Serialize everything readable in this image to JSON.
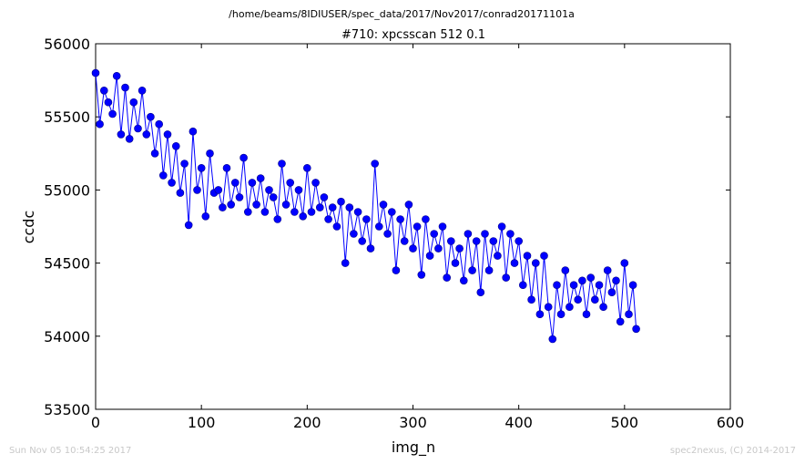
{
  "header": {
    "path": "/home/beams/8IDIUSER/spec_data/2017/Nov2017/conrad20171101a"
  },
  "footer": {
    "timestamp": "Sun Nov 05 10:54:25 2017",
    "credit": "spec2nexus, (C) 2014-2017"
  },
  "chart_data": {
    "type": "line",
    "title": "#710: xpcsscan 512 0.1",
    "xlabel": "img_n",
    "ylabel": "ccdc",
    "xlim": [
      0,
      600
    ],
    "ylim": [
      53500,
      56000
    ],
    "xticks": [
      0,
      100,
      200,
      300,
      400,
      500,
      600
    ],
    "yticks": [
      53500,
      54000,
      54500,
      55000,
      55500,
      56000
    ],
    "xtick_labels": [
      "0",
      "100",
      "200",
      "300",
      "400",
      "500",
      "600"
    ],
    "ytick_labels": [
      "53500",
      "54000",
      "54500",
      "55000",
      "55500",
      "56000"
    ],
    "grid": false,
    "marker": "circle",
    "color": "#0000ff",
    "marker_edge_color": "#00008b",
    "series": [
      {
        "x": [
          0,
          4,
          8,
          12,
          16,
          20,
          24,
          28,
          32,
          36,
          40,
          44,
          48,
          52,
          56,
          60,
          64,
          68,
          72,
          76,
          80,
          84,
          88,
          92,
          96,
          100,
          104,
          108,
          112,
          116,
          120,
          124,
          128,
          132,
          136,
          140,
          144,
          148,
          152,
          156,
          160,
          164,
          168,
          172,
          176,
          180,
          184,
          188,
          192,
          196,
          200,
          204,
          208,
          212,
          216,
          220,
          224,
          228,
          232,
          236,
          240,
          244,
          248,
          252,
          256,
          260,
          264,
          268,
          272,
          276,
          280,
          284,
          288,
          292,
          296,
          300,
          304,
          308,
          312,
          316,
          320,
          324,
          328,
          332,
          336,
          340,
          344,
          348,
          352,
          356,
          360,
          364,
          368,
          372,
          376,
          380,
          384,
          388,
          392,
          396,
          400,
          404,
          408,
          412,
          416,
          420,
          424,
          428,
          432,
          436,
          440,
          444,
          448,
          452,
          456,
          460,
          464,
          468,
          472,
          476,
          480,
          484,
          488,
          492,
          496,
          500,
          504,
          508,
          511
        ],
        "y": [
          55800,
          55450,
          55680,
          55600,
          55520,
          55780,
          55380,
          55700,
          55350,
          55600,
          55420,
          55680,
          55380,
          55500,
          55250,
          55450,
          55100,
          55380,
          55050,
          55300,
          54980,
          55180,
          54760,
          55400,
          55000,
          55150,
          54820,
          55250,
          54980,
          55000,
          54880,
          55150,
          54900,
          55050,
          54950,
          55220,
          54850,
          55050,
          54900,
          55080,
          54850,
          55000,
          54950,
          54800,
          55180,
          54900,
          55050,
          54850,
          55000,
          54820,
          55150,
          54850,
          55050,
          54880,
          54950,
          54800,
          54880,
          54750,
          54920,
          54500,
          54880,
          54700,
          54850,
          54650,
          54800,
          54600,
          55180,
          54750,
          54900,
          54700,
          54850,
          54450,
          54800,
          54650,
          54900,
          54600,
          54750,
          54420,
          54800,
          54550,
          54700,
          54600,
          54750,
          54400,
          54650,
          54500,
          54600,
          54380,
          54700,
          54450,
          54650,
          54300,
          54700,
          54450,
          54650,
          54550,
          54750,
          54400,
          54700,
          54500,
          54650,
          54350,
          54550,
          54250,
          54500,
          54150,
          54550,
          54200,
          53980,
          54350,
          54150,
          54450,
          54200,
          54350,
          54250,
          54380,
          54150,
          54400,
          54250,
          54350,
          54200,
          54450,
          54300,
          54380,
          54100,
          54500,
          54150,
          54350,
          54050
        ]
      }
    ]
  }
}
